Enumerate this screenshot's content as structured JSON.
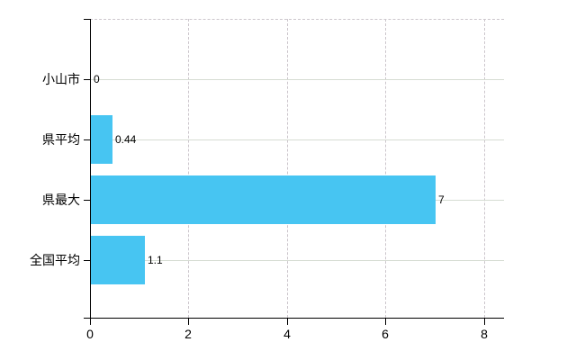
{
  "chart_data": {
    "type": "bar",
    "orientation": "horizontal",
    "title": "",
    "xlabel": "",
    "ylabel": "",
    "categories": [
      "小山市",
      "県平均",
      "県最大",
      "全国平均"
    ],
    "values": [
      0,
      0.44,
      7,
      1.1
    ],
    "value_labels": [
      "0",
      "0.44",
      "7",
      "1.1"
    ],
    "x_ticks": [
      "0",
      "2",
      "4",
      "6",
      "8"
    ],
    "x_tick_values": [
      0,
      2,
      4,
      6,
      8
    ],
    "xlim": [
      0,
      8.4
    ],
    "legend": "none",
    "grid": "vertical dashed gridlines, horizontal solid gridlines, dashed top border",
    "colors": {
      "bar": "#47c5f2",
      "dashed_grid": "#cdc7cd",
      "solid_grid": "#d6dcd3",
      "axis": "#000000",
      "text": "#000000",
      "background": "#ffffff"
    }
  }
}
